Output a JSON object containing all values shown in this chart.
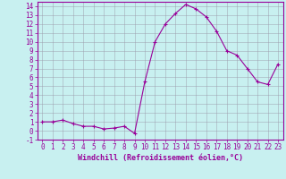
{
  "x": [
    0,
    1,
    2,
    3,
    4,
    5,
    6,
    7,
    8,
    9,
    10,
    11,
    12,
    13,
    14,
    15,
    16,
    17,
    18,
    19,
    20,
    21,
    22,
    23
  ],
  "y": [
    1.0,
    1.0,
    1.2,
    0.8,
    0.5,
    0.5,
    0.2,
    0.3,
    0.5,
    -0.3,
    5.5,
    10.0,
    12.0,
    13.2,
    14.2,
    13.7,
    12.8,
    11.2,
    9.0,
    8.5,
    7.0,
    5.5,
    5.2,
    7.5
  ],
  "line_color": "#990099",
  "marker": "+",
  "marker_size": 3,
  "linewidth": 0.8,
  "markeredgewidth": 0.8,
  "bg_color": "#c8f0f0",
  "grid_color": "#9999aa",
  "xlabel": "Windchill (Refroidissement éolien,°C)",
  "xlabel_fontsize": 6,
  "tick_fontsize": 5.5,
  "ylim": [
    -1,
    14.5
  ],
  "xlim": [
    -0.5,
    23.5
  ],
  "yticks": [
    -1,
    0,
    1,
    2,
    3,
    4,
    5,
    6,
    7,
    8,
    9,
    10,
    11,
    12,
    13,
    14
  ],
  "xticks": [
    0,
    1,
    2,
    3,
    4,
    5,
    6,
    7,
    8,
    9,
    10,
    11,
    12,
    13,
    14,
    15,
    16,
    17,
    18,
    19,
    20,
    21,
    22,
    23
  ]
}
